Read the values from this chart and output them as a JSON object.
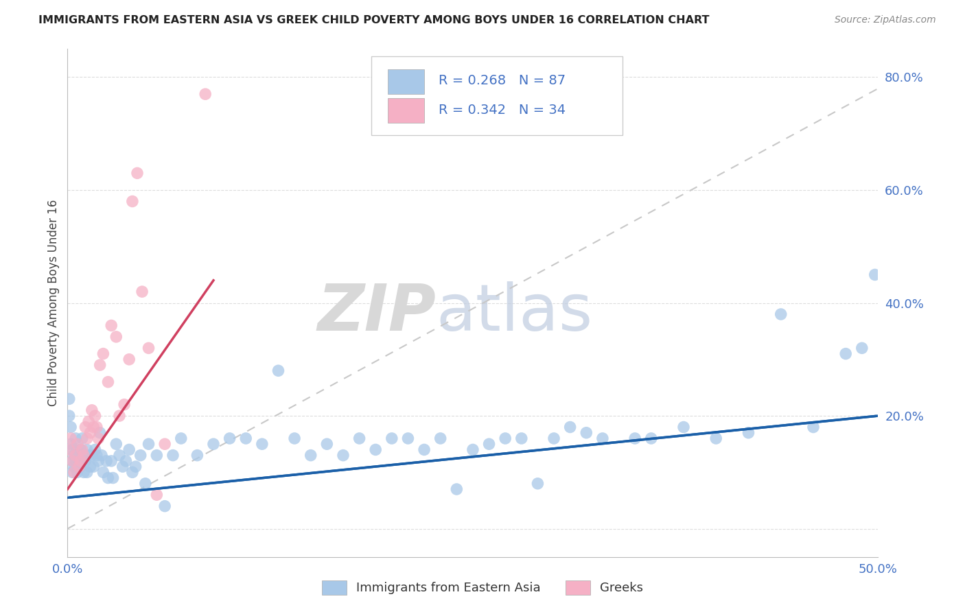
{
  "title": "IMMIGRANTS FROM EASTERN ASIA VS GREEK CHILD POVERTY AMONG BOYS UNDER 16 CORRELATION CHART",
  "source": "Source: ZipAtlas.com",
  "ylabel": "Child Poverty Among Boys Under 16",
  "xlim": [
    0.0,
    0.5
  ],
  "ylim": [
    -0.05,
    0.85
  ],
  "blue_scatter_color": "#a8c8e8",
  "pink_scatter_color": "#f5b0c5",
  "blue_line_color": "#1a5fa8",
  "pink_line_color": "#d04060",
  "dashed_line_color": "#c8c8c8",
  "axis_label_color": "#4472c4",
  "grid_color": "#dddddd",
  "title_color": "#222222",
  "source_color": "#888888",
  "legend_text_color": "#4472c4",
  "blue_scatter_x": [
    0.001,
    0.001,
    0.002,
    0.002,
    0.003,
    0.003,
    0.003,
    0.004,
    0.004,
    0.005,
    0.005,
    0.006,
    0.006,
    0.007,
    0.008,
    0.008,
    0.009,
    0.009,
    0.01,
    0.01,
    0.011,
    0.012,
    0.012,
    0.013,
    0.014,
    0.015,
    0.016,
    0.017,
    0.018,
    0.019,
    0.02,
    0.021,
    0.022,
    0.024,
    0.025,
    0.027,
    0.028,
    0.03,
    0.032,
    0.034,
    0.036,
    0.038,
    0.04,
    0.042,
    0.045,
    0.048,
    0.05,
    0.055,
    0.06,
    0.065,
    0.07,
    0.08,
    0.09,
    0.1,
    0.11,
    0.12,
    0.13,
    0.14,
    0.15,
    0.16,
    0.17,
    0.18,
    0.19,
    0.2,
    0.21,
    0.22,
    0.23,
    0.24,
    0.25,
    0.26,
    0.27,
    0.28,
    0.29,
    0.3,
    0.31,
    0.32,
    0.33,
    0.35,
    0.36,
    0.38,
    0.4,
    0.42,
    0.44,
    0.46,
    0.48,
    0.49,
    0.498
  ],
  "blue_scatter_y": [
    0.23,
    0.2,
    0.18,
    0.15,
    0.14,
    0.12,
    0.1,
    0.13,
    0.11,
    0.16,
    0.12,
    0.14,
    0.1,
    0.13,
    0.11,
    0.14,
    0.12,
    0.16,
    0.1,
    0.13,
    0.12,
    0.14,
    0.1,
    0.13,
    0.11,
    0.13,
    0.11,
    0.14,
    0.13,
    0.12,
    0.17,
    0.13,
    0.1,
    0.12,
    0.09,
    0.12,
    0.09,
    0.15,
    0.13,
    0.11,
    0.12,
    0.14,
    0.1,
    0.11,
    0.13,
    0.08,
    0.15,
    0.13,
    0.04,
    0.13,
    0.16,
    0.13,
    0.15,
    0.16,
    0.16,
    0.15,
    0.28,
    0.16,
    0.13,
    0.15,
    0.13,
    0.16,
    0.14,
    0.16,
    0.16,
    0.14,
    0.16,
    0.07,
    0.14,
    0.15,
    0.16,
    0.16,
    0.08,
    0.16,
    0.18,
    0.17,
    0.16,
    0.16,
    0.16,
    0.18,
    0.16,
    0.17,
    0.38,
    0.18,
    0.31,
    0.32,
    0.45
  ],
  "pink_scatter_x": [
    0.001,
    0.002,
    0.003,
    0.004,
    0.005,
    0.006,
    0.007,
    0.008,
    0.009,
    0.01,
    0.011,
    0.012,
    0.013,
    0.014,
    0.015,
    0.016,
    0.017,
    0.018,
    0.019,
    0.02,
    0.022,
    0.025,
    0.027,
    0.03,
    0.032,
    0.035,
    0.038,
    0.04,
    0.043,
    0.046,
    0.05,
    0.055,
    0.06,
    0.085
  ],
  "pink_scatter_y": [
    0.14,
    0.16,
    0.12,
    0.1,
    0.13,
    0.15,
    0.11,
    0.12,
    0.14,
    0.13,
    0.18,
    0.16,
    0.19,
    0.17,
    0.21,
    0.18,
    0.2,
    0.18,
    0.16,
    0.29,
    0.31,
    0.26,
    0.36,
    0.34,
    0.2,
    0.22,
    0.3,
    0.58,
    0.63,
    0.42,
    0.32,
    0.06,
    0.15,
    0.77
  ],
  "blue_line_x0": 0.0,
  "blue_line_y0": 0.055,
  "blue_line_x1": 0.5,
  "blue_line_y1": 0.2,
  "pink_line_x0": 0.0,
  "pink_line_y0": 0.07,
  "pink_line_x1": 0.09,
  "pink_line_y1": 0.44,
  "dash_line_x0": 0.0,
  "dash_line_y0": 0.0,
  "dash_line_x1": 0.5,
  "dash_line_y1": 0.78
}
